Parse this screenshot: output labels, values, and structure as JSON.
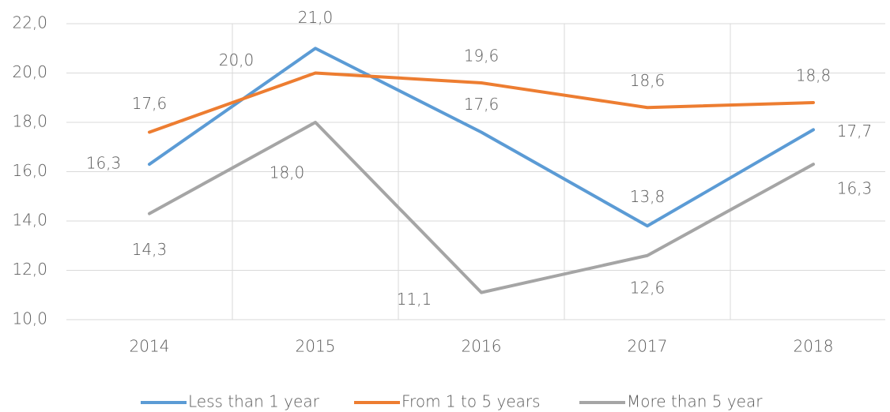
{
  "chart_data": {
    "type": "line",
    "categories": [
      "2014",
      "2015",
      "2016",
      "2017",
      "2018"
    ],
    "series": [
      {
        "name": "Less than 1 year",
        "color": "#5b9bd5",
        "values": [
          16.3,
          21.0,
          17.6,
          13.8,
          17.7
        ],
        "value_labels": [
          "16,3",
          "21,0",
          "17,6",
          "13,8",
          "17,7"
        ]
      },
      {
        "name": "From 1 to 5 years",
        "color": "#ed7d31",
        "values": [
          17.6,
          20.0,
          19.6,
          18.6,
          18.8
        ],
        "value_labels": [
          "17,6",
          "20,0",
          "19,6",
          "18,6",
          "18,8"
        ]
      },
      {
        "name": "More than 5 year",
        "color": "#a5a5a5",
        "values": [
          14.3,
          18.0,
          11.1,
          12.6,
          16.3
        ],
        "value_labels": [
          "14,3",
          "18,0",
          "11,1",
          "12,6",
          "16,3"
        ]
      }
    ],
    "ylim": [
      10,
      22
    ],
    "yticks": [
      {
        "value": 10,
        "label": "10,0"
      },
      {
        "value": 12,
        "label": "12,0"
      },
      {
        "value": 14,
        "label": "14,0"
      },
      {
        "value": 16,
        "label": "16,0"
      },
      {
        "value": 18,
        "label": "18,0"
      },
      {
        "value": 20,
        "label": "20,0"
      },
      {
        "value": 22,
        "label": "22,0"
      }
    ],
    "grid": true,
    "legend": "bottom"
  }
}
